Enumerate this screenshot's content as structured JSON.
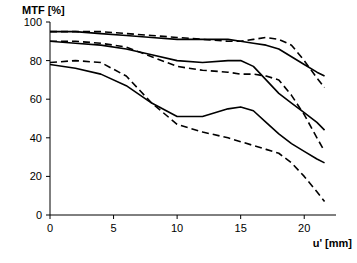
{
  "chart_data": {
    "type": "line",
    "y_label": "MTF [%]",
    "x_label": "u' [mm]",
    "x": [
      0,
      2,
      4,
      6,
      8,
      10,
      12,
      14,
      15,
      16,
      17,
      18,
      19,
      20,
      21,
      21.6
    ],
    "series": [
      {
        "color": "#000000",
        "line_style": "solid",
        "values": [
          95,
          95,
          94,
          93,
          92,
          91,
          91,
          91,
          90,
          89,
          88,
          86,
          82,
          78,
          74,
          72
        ]
      },
      {
        "color": "#000000",
        "line_style": "dashed",
        "values": [
          95,
          95,
          95,
          94,
          93,
          92,
          91,
          90,
          90,
          91,
          92,
          91,
          88,
          80,
          71,
          66
        ]
      },
      {
        "color": "#000000",
        "line_style": "solid",
        "values": [
          90,
          89,
          88,
          86,
          83,
          80,
          79,
          80,
          80,
          77,
          70,
          63,
          58,
          53,
          48,
          44
        ]
      },
      {
        "color": "#000000",
        "line_style": "dashed",
        "values": [
          90,
          90,
          89,
          87,
          82,
          77,
          75,
          74,
          73,
          73,
          72,
          70,
          62,
          52,
          40,
          33
        ]
      },
      {
        "color": "#000000",
        "line_style": "solid",
        "values": [
          78,
          76,
          73,
          67,
          58,
          51,
          51,
          55,
          56,
          54,
          48,
          42,
          37,
          33,
          29,
          27
        ]
      },
      {
        "color": "#000000",
        "line_style": "dashed",
        "values": [
          79,
          80,
          79,
          72,
          58,
          47,
          43,
          40,
          38,
          36,
          34,
          32,
          27,
          20,
          12,
          7
        ]
      }
    ],
    "xlim": [
      0,
      22.5
    ],
    "ylim": [
      0,
      100
    ],
    "xticks": [
      0,
      5,
      10,
      15,
      20
    ],
    "yticks": [
      0,
      20,
      40,
      60,
      80,
      100
    ],
    "grid": false
  }
}
